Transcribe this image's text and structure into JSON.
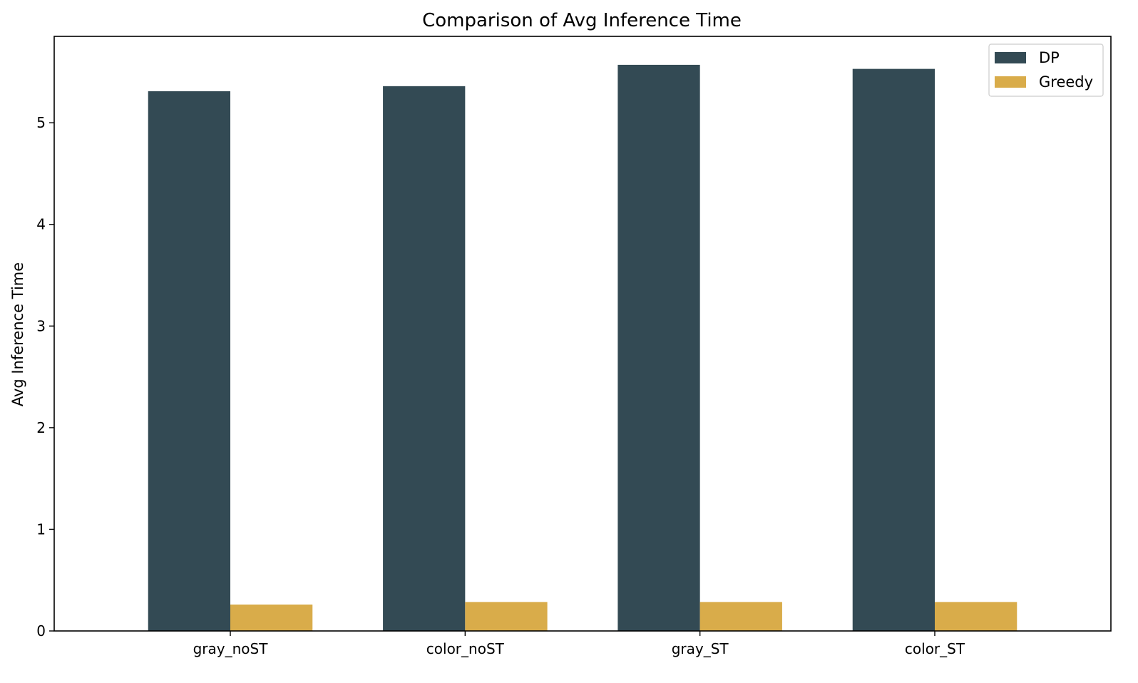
{
  "chart_data": {
    "type": "bar",
    "title": "Comparison of Avg Inference Time",
    "xlabel": "",
    "ylabel": "Avg Inference Time",
    "categories": [
      "gray_noST",
      "color_noST",
      "gray_ST",
      "color_ST"
    ],
    "series": [
      {
        "name": "DP",
        "color": "#334a54",
        "values": [
          5.31,
          5.36,
          5.57,
          5.53
        ]
      },
      {
        "name": "Greedy",
        "color": "#d9ac4a",
        "values": [
          0.26,
          0.285,
          0.285,
          0.285
        ]
      }
    ],
    "ylim": [
      0,
      5.85
    ],
    "yticks": [
      "0",
      "1",
      "2",
      "3",
      "4",
      "5"
    ],
    "grid": false,
    "legend_position": "top-right"
  }
}
